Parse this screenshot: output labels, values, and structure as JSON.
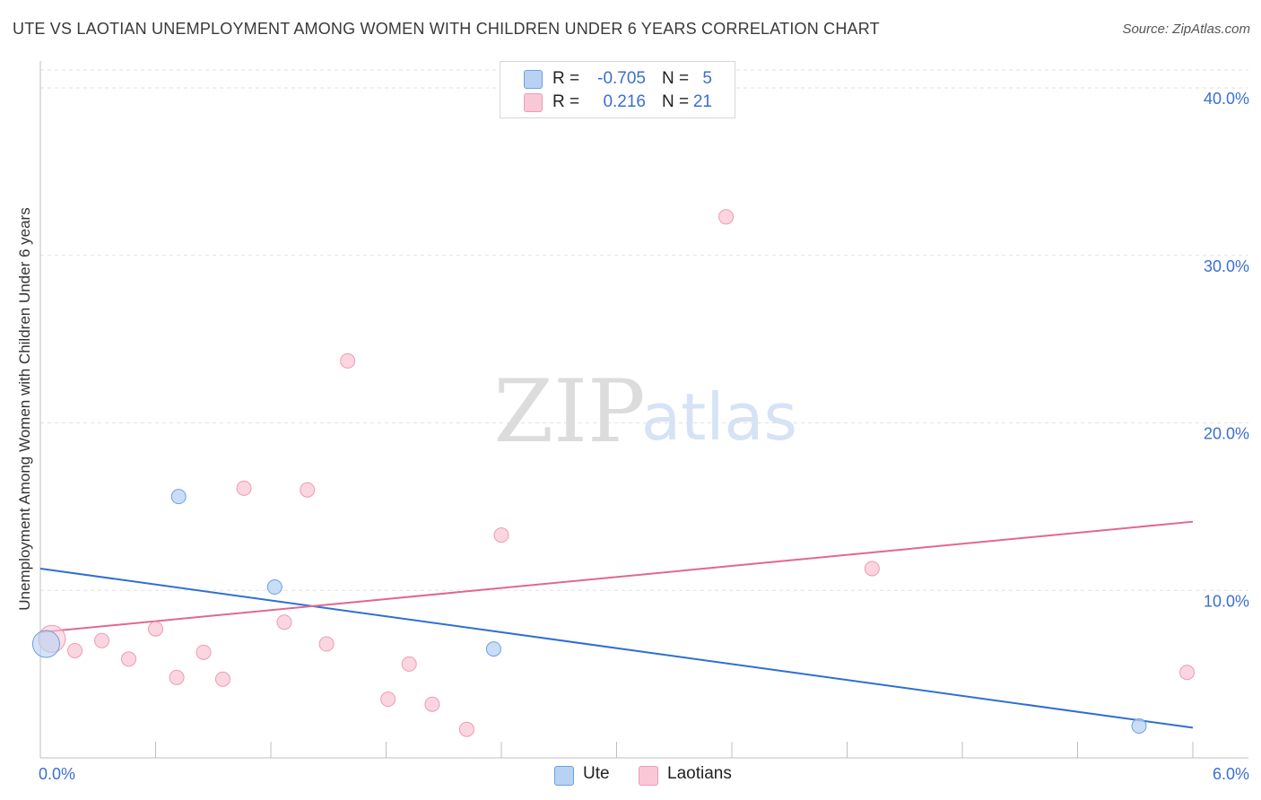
{
  "title": "UTE VS LAOTIAN UNEMPLOYMENT AMONG WOMEN WITH CHILDREN UNDER 6 YEARS CORRELATION CHART",
  "source": "Source: ZipAtlas.com",
  "watermark": {
    "zip": "ZIP",
    "atlas": "atlas"
  },
  "stats": [
    {
      "r_label": "R =",
      "r_value": "-0.705",
      "n_label": "N =",
      "n_value": "5"
    },
    {
      "r_label": "R =",
      "r_value": "0.216",
      "n_label": "N =",
      "n_value": "21"
    }
  ],
  "legend": [
    "Ute",
    "Laotians"
  ],
  "colors": {
    "ute_fill": "#b8d2f4",
    "ute_stroke": "#6f9fdc",
    "ute_line": "#2f6fd0",
    "lao_fill": "#f9c8d6",
    "lao_stroke": "#ee9ab4",
    "lao_line": "#e0688f",
    "axis_text": "#3b6fd0",
    "grid": "#e2e2e2"
  },
  "chart_data": {
    "type": "scatter",
    "ylabel": "Unemployment Among Women with Children Under 6 years",
    "xlabel": "",
    "xlim": [
      0,
      6
    ],
    "ylim": [
      0,
      41.5
    ],
    "x_tick_labels": [
      {
        "x": 0,
        "label": "0.0%"
      },
      {
        "x": 6,
        "label": "6.0%"
      }
    ],
    "y_tick_labels": [
      {
        "y": 10,
        "label": "10.0%"
      },
      {
        "y": 20,
        "label": "20.0%"
      },
      {
        "y": 30,
        "label": "30.0%"
      },
      {
        "y": 40,
        "label": "40.0%"
      }
    ],
    "series": [
      {
        "name": "Ute",
        "points": [
          {
            "x": 0.03,
            "y": 6.8,
            "large": true
          },
          {
            "x": 0.72,
            "y": 15.6
          },
          {
            "x": 1.22,
            "y": 10.2
          },
          {
            "x": 2.36,
            "y": 6.5
          },
          {
            "x": 5.72,
            "y": 1.9
          }
        ],
        "trend": {
          "x0": 0.0,
          "y0": 11.3,
          "x1": 6.0,
          "y1": 1.8
        }
      },
      {
        "name": "Laotians",
        "points": [
          {
            "x": 0.06,
            "y": 7.1,
            "large": true
          },
          {
            "x": 0.18,
            "y": 6.4
          },
          {
            "x": 0.32,
            "y": 7.0
          },
          {
            "x": 0.46,
            "y": 5.9
          },
          {
            "x": 0.6,
            "y": 7.7
          },
          {
            "x": 0.71,
            "y": 4.8
          },
          {
            "x": 0.85,
            "y": 6.3
          },
          {
            "x": 0.95,
            "y": 4.7
          },
          {
            "x": 1.06,
            "y": 16.1
          },
          {
            "x": 1.27,
            "y": 8.1
          },
          {
            "x": 1.39,
            "y": 16.0
          },
          {
            "x": 1.49,
            "y": 6.8
          },
          {
            "x": 1.6,
            "y": 23.7
          },
          {
            "x": 1.81,
            "y": 3.5
          },
          {
            "x": 1.92,
            "y": 5.6
          },
          {
            "x": 2.04,
            "y": 3.2
          },
          {
            "x": 2.22,
            "y": 1.7
          },
          {
            "x": 2.4,
            "y": 13.3
          },
          {
            "x": 3.57,
            "y": 32.3
          },
          {
            "x": 4.33,
            "y": 11.3
          },
          {
            "x": 5.97,
            "y": 5.1
          }
        ],
        "trend": {
          "x0": 0.0,
          "y0": 7.5,
          "x1": 6.0,
          "y1": 14.1
        }
      }
    ]
  }
}
